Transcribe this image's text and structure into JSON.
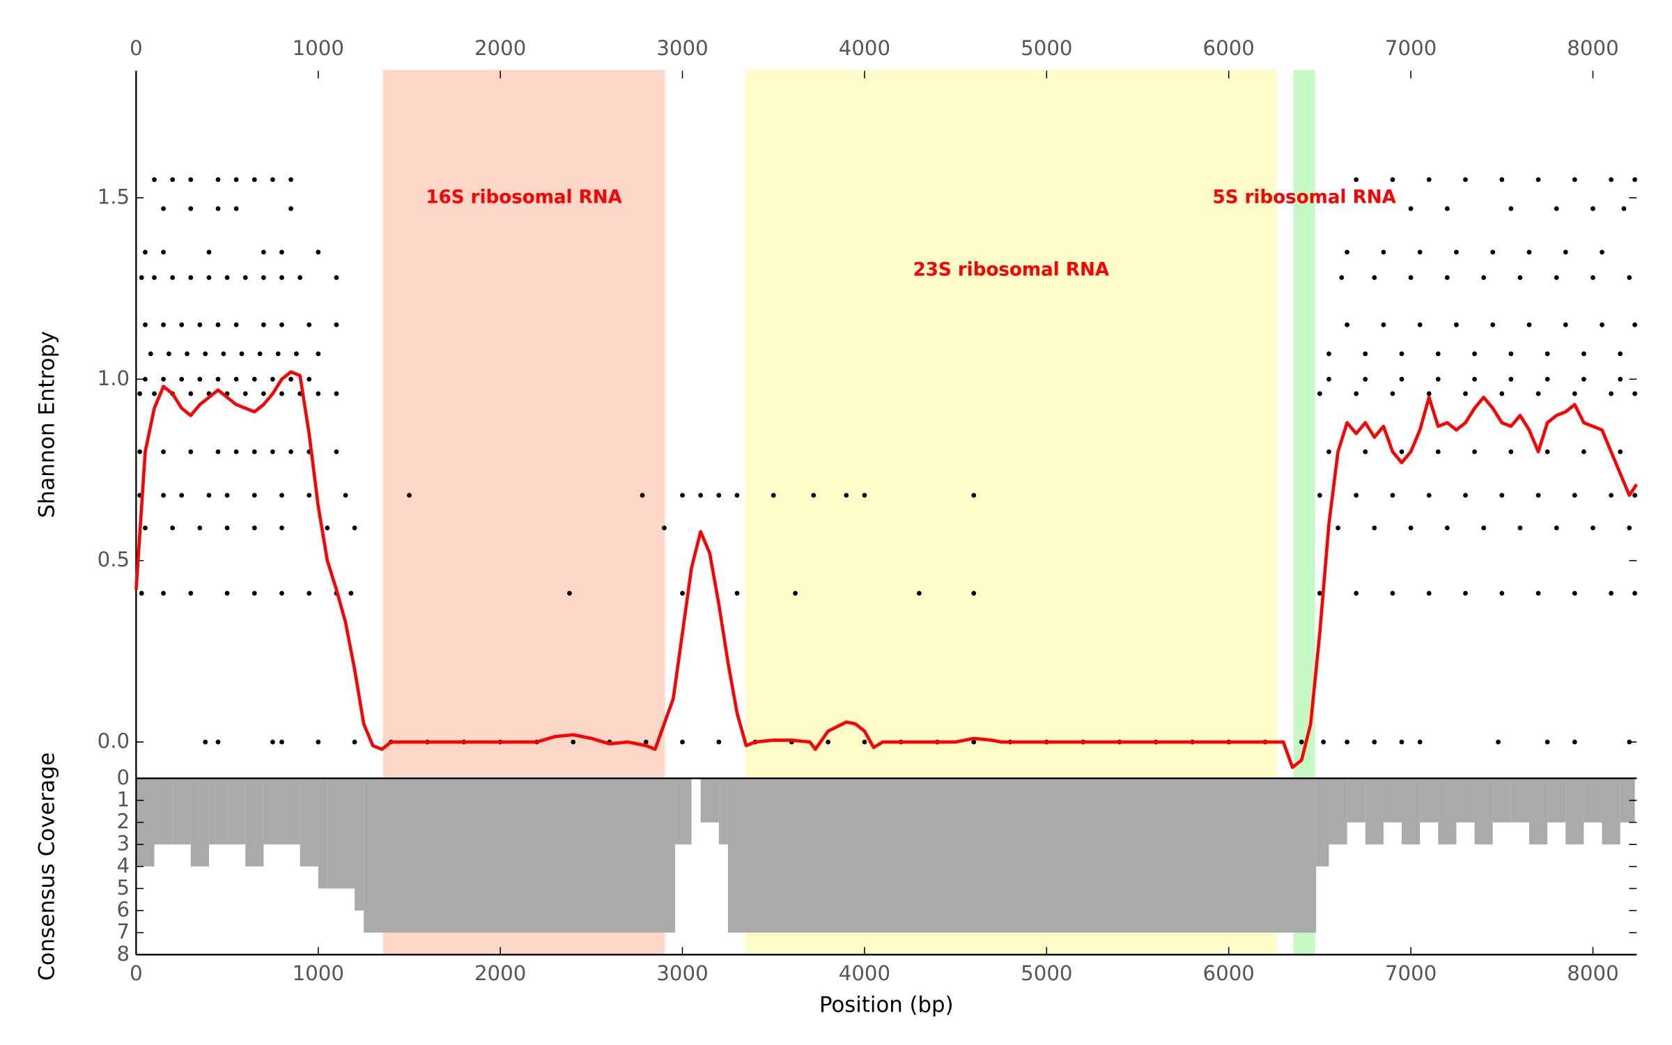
{
  "chart_data": [
    {
      "type": "scatter",
      "ylabel": "Shannon Entropy",
      "xlim": [
        0,
        8240
      ],
      "xticks": [
        0,
        1000,
        2000,
        3000,
        4000,
        5000,
        6000,
        7000,
        8000
      ],
      "ylim": [
        -0.1,
        1.85
      ],
      "yticks": [
        {
          "value": 0,
          "label": "0.0"
        },
        0.5,
        {
          "value": 1,
          "label": "1.0"
        },
        1.5
      ],
      "spans": [
        {
          "label": "16S ribosomal RNA",
          "start": 1360,
          "end": 2900,
          "color": "#fdd8c8"
        },
        {
          "label": "23S ribosomal RNA",
          "start": 3350,
          "end": 6260,
          "color": "#fefcc8"
        },
        {
          "label": "5S ribosomal RNA",
          "start": 6360,
          "end": 6470,
          "color": "#c6f8c6"
        }
      ],
      "series": [
        {
          "type": "scatter",
          "color": "#000000",
          "x": [
            100,
            200,
            300,
            450,
            550,
            650,
            750,
            850,
            6700,
            6900,
            7100,
            7300,
            7500,
            7700,
            7900,
            8100,
            8230
          ],
          "values": [
            1.55,
            1.55,
            1.55,
            1.55,
            1.55,
            1.55,
            1.55,
            1.55,
            1.55,
            1.55,
            1.55,
            1.55,
            1.55,
            1.55,
            1.55,
            1.55,
            1.55
          ]
        },
        {
          "type": "scatter",
          "color": "#000000",
          "x": [
            150,
            300,
            450,
            550,
            850,
            7000,
            7200,
            7550,
            7800,
            8000,
            8170
          ],
          "values": [
            1.47,
            1.47,
            1.47,
            1.47,
            1.47,
            1.47,
            1.47,
            1.47,
            1.47,
            1.47,
            1.47
          ]
        },
        {
          "type": "scatter",
          "color": "#000000",
          "x": [
            50,
            150,
            400,
            700,
            800,
            1000,
            6650,
            6850,
            7050,
            7250,
            7450,
            7650,
            7850,
            8050
          ],
          "values": [
            1.35,
            1.35,
            1.35,
            1.35,
            1.35,
            1.35,
            1.35,
            1.35,
            1.35,
            1.35,
            1.35,
            1.35,
            1.35,
            1.35
          ]
        },
        {
          "type": "scatter",
          "color": "#000000",
          "x": [
            30,
            100,
            200,
            300,
            400,
            500,
            600,
            700,
            800,
            900,
            1100,
            6620,
            6800,
            7000,
            7200,
            7400,
            7600,
            7800,
            8000,
            8200
          ],
          "values": [
            1.28,
            1.28,
            1.28,
            1.28,
            1.28,
            1.28,
            1.28,
            1.28,
            1.28,
            1.28,
            1.28,
            1.28,
            1.28,
            1.28,
            1.28,
            1.28,
            1.28,
            1.28,
            1.28,
            1.28
          ]
        },
        {
          "type": "scatter",
          "color": "#000000",
          "x": [
            50,
            150,
            250,
            350,
            450,
            550,
            700,
            800,
            950,
            1100,
            6650,
            6850,
            7050,
            7250,
            7450,
            7650,
            7850,
            8050,
            8230
          ],
          "values": [
            1.15,
            1.15,
            1.15,
            1.15,
            1.15,
            1.15,
            1.15,
            1.15,
            1.15,
            1.15,
            1.15,
            1.15,
            1.15,
            1.15,
            1.15,
            1.15,
            1.15,
            1.15,
            1.15
          ]
        },
        {
          "type": "scatter",
          "color": "#000000",
          "x": [
            80,
            180,
            280,
            380,
            480,
            580,
            680,
            780,
            880,
            1000,
            6550,
            6750,
            6950,
            7150,
            7350,
            7550,
            7750,
            7950,
            8150
          ],
          "values": [
            1.07,
            1.07,
            1.07,
            1.07,
            1.07,
            1.07,
            1.07,
            1.07,
            1.07,
            1.07,
            1.07,
            1.07,
            1.07,
            1.07,
            1.07,
            1.07,
            1.07,
            1.07,
            1.07
          ]
        },
        {
          "type": "scatter",
          "color": "#000000",
          "x": [
            50,
            150,
            250,
            350,
            450,
            550,
            650,
            750,
            850,
            950,
            6550,
            6750,
            6950,
            7150,
            7350,
            7550,
            7750,
            7950,
            8150
          ],
          "values": [
            1.0,
            1.0,
            1.0,
            1.0,
            1.0,
            1.0,
            1.0,
            1.0,
            1.0,
            1.0,
            1.0,
            1.0,
            1.0,
            1.0,
            1.0,
            1.0,
            1.0,
            1.0,
            1.0
          ]
        },
        {
          "type": "scatter",
          "color": "#000000",
          "x": [
            20,
            100,
            200,
            300,
            400,
            500,
            600,
            700,
            800,
            900,
            1000,
            1100,
            6500,
            6700,
            6900,
            7100,
            7300,
            7500,
            7700,
            7900,
            8100,
            8230
          ],
          "values": [
            0.96,
            0.96,
            0.96,
            0.96,
            0.96,
            0.96,
            0.96,
            0.96,
            0.96,
            0.96,
            0.96,
            0.96,
            0.96,
            0.96,
            0.96,
            0.96,
            0.96,
            0.96,
            0.96,
            0.96,
            0.96,
            0.96
          ]
        },
        {
          "type": "scatter",
          "color": "#000000",
          "x": [
            20,
            150,
            300,
            450,
            550,
            650,
            750,
            850,
            950,
            1100,
            6550,
            6750,
            6950,
            7150,
            7350,
            7550,
            7750,
            7950,
            8150
          ],
          "values": [
            0.8,
            0.8,
            0.8,
            0.8,
            0.8,
            0.8,
            0.8,
            0.8,
            0.8,
            0.8,
            0.8,
            0.8,
            0.8,
            0.8,
            0.8,
            0.8,
            0.8,
            0.8,
            0.8
          ]
        },
        {
          "type": "scatter",
          "color": "#000000",
          "x": [
            20,
            150,
            250,
            400,
            500,
            650,
            800,
            950,
            1150,
            1500,
            2780,
            3000,
            3100,
            3200,
            3300,
            3500,
            3720,
            3900,
            4000,
            4600,
            6500,
            6700,
            6900,
            7100,
            7300,
            7500,
            7700,
            7900,
            8100,
            8230
          ],
          "values": [
            0.68,
            0.68,
            0.68,
            0.68,
            0.68,
            0.68,
            0.68,
            0.68,
            0.68,
            0.68,
            0.68,
            0.68,
            0.68,
            0.68,
            0.68,
            0.68,
            0.68,
            0.68,
            0.68,
            0.68,
            0.68,
            0.68,
            0.68,
            0.68,
            0.68,
            0.68,
            0.68,
            0.68,
            0.68,
            0.68
          ]
        },
        {
          "type": "scatter",
          "color": "#000000",
          "x": [
            50,
            200,
            350,
            500,
            650,
            800,
            1050,
            1200,
            2900,
            6600,
            6800,
            7000,
            7200,
            7400,
            7600,
            7800,
            8000,
            8200
          ],
          "values": [
            0.59,
            0.59,
            0.59,
            0.59,
            0.59,
            0.59,
            0.59,
            0.59,
            0.59,
            0.59,
            0.59,
            0.59,
            0.59,
            0.59,
            0.59,
            0.59,
            0.59,
            0.59
          ]
        },
        {
          "type": "scatter",
          "color": "#000000",
          "x": [
            30,
            150,
            300,
            500,
            650,
            800,
            950,
            1100,
            1180,
            2380,
            3000,
            3300,
            3620,
            4300,
            4600,
            6500,
            6700,
            6900,
            7100,
            7300,
            7500,
            7700,
            7900,
            8100,
            8230
          ],
          "values": [
            0.41,
            0.41,
            0.41,
            0.41,
            0.41,
            0.41,
            0.41,
            0.41,
            0.41,
            0.41,
            0.41,
            0.41,
            0.41,
            0.41,
            0.41,
            0.41,
            0.41,
            0.41,
            0.41,
            0.41,
            0.41,
            0.41,
            0.41,
            0.41,
            0.41
          ]
        },
        {
          "type": "scatter",
          "color": "#000000",
          "x": [
            380,
            450,
            750,
            800,
            1000,
            1200,
            1400,
            1600,
            1800,
            2000,
            2200,
            2400,
            2600,
            2800,
            3000,
            3200,
            3400,
            3600,
            3800,
            4000,
            4200,
            4400,
            4600,
            4800,
            5000,
            5200,
            5400,
            5600,
            5800,
            6000,
            6200,
            6400,
            6520,
            6650,
            6800,
            6950,
            7050,
            7480,
            7750,
            7900,
            8200
          ],
          "values": [
            0,
            0,
            0,
            0,
            0,
            0,
            0,
            0,
            0,
            0,
            0,
            0,
            0,
            0,
            0,
            0,
            0,
            0,
            0,
            0,
            0,
            0,
            0,
            0,
            0,
            0,
            0,
            0,
            0,
            0,
            0,
            0,
            0,
            0,
            0,
            0,
            0,
            0,
            0,
            0,
            0
          ]
        },
        {
          "type": "line",
          "color": "#ff0000",
          "x": [
            0,
            50,
            100,
            150,
            200,
            250,
            300,
            350,
            400,
            450,
            500,
            550,
            600,
            650,
            700,
            750,
            800,
            850,
            900,
            950,
            1000,
            1050,
            1100,
            1150,
            1200,
            1250,
            1300,
            1350,
            1400,
            1500,
            1800,
            2200,
            2300,
            2400,
            2500,
            2600,
            2700,
            2800,
            2850,
            2900,
            2950,
            3000,
            3050,
            3100,
            3150,
            3200,
            3250,
            3300,
            3350,
            3400,
            3500,
            3600,
            3700,
            3730,
            3800,
            3900,
            3950,
            4000,
            4050,
            4100,
            4500,
            4600,
            4700,
            4750,
            5000,
            6000,
            6300,
            6350,
            6400,
            6450,
            6500,
            6550,
            6600,
            6650,
            6700,
            6750,
            6800,
            6850,
            6900,
            6950,
            7000,
            7050,
            7100,
            7150,
            7200,
            7250,
            7300,
            7350,
            7400,
            7450,
            7500,
            7550,
            7600,
            7650,
            7700,
            7750,
            7800,
            7850,
            7900,
            7950,
            8000,
            8050,
            8100,
            8150,
            8200,
            8240
          ],
          "values": [
            0.42,
            0.8,
            0.92,
            0.98,
            0.96,
            0.92,
            0.9,
            0.93,
            0.95,
            0.97,
            0.95,
            0.93,
            0.92,
            0.91,
            0.93,
            0.96,
            1.0,
            1.02,
            1.01,
            0.85,
            0.65,
            0.5,
            0.42,
            0.33,
            0.2,
            0.05,
            -0.01,
            -0.02,
            0.0,
            0.0,
            0.0,
            0.0,
            0.015,
            0.02,
            0.01,
            -0.005,
            0.0,
            -0.01,
            -0.02,
            0.05,
            0.12,
            0.3,
            0.48,
            0.58,
            0.52,
            0.38,
            0.22,
            0.08,
            -0.01,
            0.0,
            0.005,
            0.005,
            0.0,
            -0.02,
            0.03,
            0.055,
            0.05,
            0.03,
            -0.015,
            0.0,
            0.0,
            0.01,
            0.005,
            0.0,
            0.0,
            0.0,
            0.0,
            -0.07,
            -0.05,
            0.05,
            0.3,
            0.6,
            0.8,
            0.88,
            0.85,
            0.88,
            0.84,
            0.87,
            0.8,
            0.77,
            0.8,
            0.86,
            0.95,
            0.87,
            0.88,
            0.86,
            0.88,
            0.92,
            0.95,
            0.92,
            0.88,
            0.87,
            0.9,
            0.86,
            0.8,
            0.88,
            0.9,
            0.91,
            0.93,
            0.88,
            0.87,
            0.86,
            0.8,
            0.74,
            0.68,
            0.71
          ]
        }
      ]
    },
    {
      "type": "histogram",
      "xlabel": "Position (bp)",
      "ylabel": "Consensus Coverage",
      "xlim": [
        0,
        8240
      ],
      "xticks": [
        0,
        1000,
        2000,
        3000,
        4000,
        5000,
        6000,
        7000,
        8000
      ],
      "ylim": [
        0,
        8
      ],
      "y_inverted": true,
      "yticks": [
        0,
        1,
        2,
        3,
        4,
        5,
        6,
        7,
        8
      ],
      "color": "#aaaaaa",
      "bins": [
        0,
        100,
        200,
        300,
        400,
        500,
        600,
        700,
        800,
        900,
        1000,
        1050,
        1200,
        1250,
        2960,
        3050,
        3100,
        3200,
        3250,
        6480,
        6550,
        6650,
        6750,
        6850,
        6950,
        7050,
        7150,
        7250,
        7350,
        7450,
        7550,
        7650,
        7750,
        7850,
        7950,
        8050,
        8150,
        8230
      ],
      "values": [
        4,
        3,
        3,
        4,
        3,
        3,
        4,
        3,
        3,
        4,
        5,
        5,
        6,
        7,
        3,
        0,
        2,
        3,
        7,
        4,
        3,
        2,
        3,
        2,
        3,
        2,
        3,
        2,
        3,
        2,
        2,
        3,
        2,
        3,
        2,
        3,
        2
      ]
    }
  ]
}
